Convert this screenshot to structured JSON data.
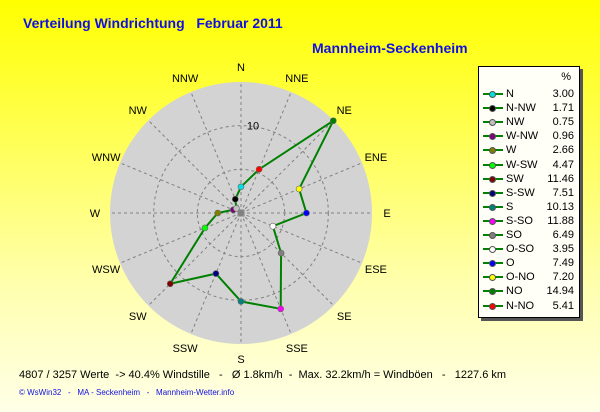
{
  "header": {
    "title": "Verteilung Windrichtung   Februar 2011",
    "station": "Mannheim-Seckenheim"
  },
  "chart_data": {
    "type": "radar",
    "directions": [
      "N",
      "NNE",
      "NE",
      "ENE",
      "E",
      "ESE",
      "SE",
      "SSE",
      "S",
      "SSW",
      "SW",
      "WSW",
      "W",
      "WNW",
      "NW",
      "NNW"
    ],
    "values": [
      3.0,
      5.41,
      14.94,
      7.2,
      7.49,
      3.95,
      6.49,
      11.88,
      10.13,
      7.51,
      11.46,
      4.47,
      2.66,
      0.96,
      0.75,
      1.71
    ],
    "point_colors": [
      "#00e0e0",
      "#ff0000",
      "#008000",
      "#ffff00",
      "#0000ff",
      "#ffffff",
      "#808080",
      "#ff00ff",
      "#008080",
      "#000080",
      "#800000",
      "#00ff00",
      "#808000",
      "#800080",
      "#c0c0c0",
      "#000000"
    ],
    "radial_tick_label": "10",
    "rlim": [
      0,
      15
    ],
    "rings": [
      5,
      10,
      15
    ],
    "grid": true,
    "line_color": "#008000",
    "legend_position": "right",
    "unit": "%"
  },
  "legend": {
    "unit": "%",
    "items": [
      {
        "label": "N",
        "value": "3.00",
        "color": "#00e0e0"
      },
      {
        "label": "N-NW",
        "value": "1.71",
        "color": "#000000"
      },
      {
        "label": "NW",
        "value": "0.75",
        "color": "#c0c0c0"
      },
      {
        "label": "W-NW",
        "value": "0.96",
        "color": "#800080"
      },
      {
        "label": "W",
        "value": "2.66",
        "color": "#808000"
      },
      {
        "label": "W-SW",
        "value": "4.47",
        "color": "#00ff00"
      },
      {
        "label": "SW",
        "value": "11.46",
        "color": "#800000"
      },
      {
        "label": "S-SW",
        "value": "7.51",
        "color": "#000080"
      },
      {
        "label": "S",
        "value": "10.13",
        "color": "#008080"
      },
      {
        "label": "S-SO",
        "value": "11.88",
        "color": "#ff00ff"
      },
      {
        "label": "SO",
        "value": "6.49",
        "color": "#808080"
      },
      {
        "label": "O-SO",
        "value": "3.95",
        "color": "#ffffff"
      },
      {
        "label": "O",
        "value": "7.49",
        "color": "#0000ff"
      },
      {
        "label": "O-NO",
        "value": "7.20",
        "color": "#ffff00"
      },
      {
        "label": "NO",
        "value": "14.94",
        "color": "#008000"
      },
      {
        "label": "N-NO",
        "value": "5.41",
        "color": "#ff0000"
      }
    ]
  },
  "stats": "4807 / 3257 Werte  -> 40.4% Windstille   -   Ø 1.8km/h  -  Max. 32.2km/h = Windböen   -   1227.6 km",
  "footer": "© WsWin32   -   MA - Seckenheim   -   Mannheim-Wetter.info"
}
